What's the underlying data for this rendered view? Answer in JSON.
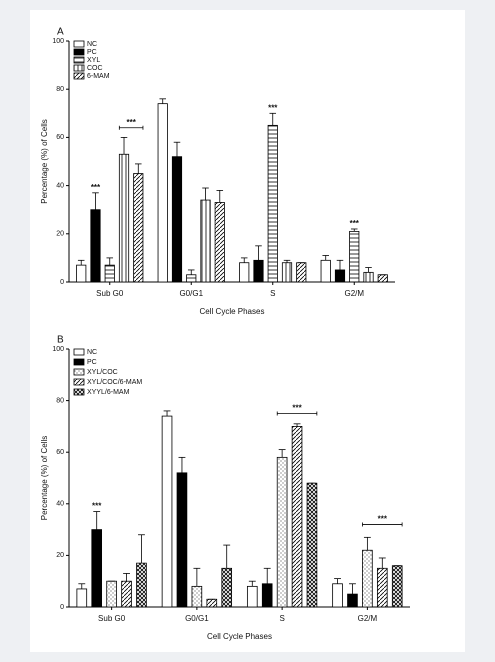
{
  "chart_data": [
    {
      "type": "bar",
      "title": "A",
      "x_label": "Cell Cycle Phases",
      "y_label": "Percentage (%) of Cells",
      "categories": [
        "Sub G0",
        "G0/G1",
        "S",
        "G2/M"
      ],
      "ylim": [
        0,
        100
      ],
      "yticks": [
        0,
        20,
        40,
        60,
        80,
        100
      ],
      "legend": "upper left",
      "series": [
        {
          "name": "NC",
          "color": "#ffffff",
          "hatch": "none",
          "values": [
            7,
            74,
            8,
            9
          ],
          "errors": [
            2,
            2,
            2,
            2
          ],
          "significance": [
            null,
            null,
            null,
            null
          ]
        },
        {
          "name": "PC",
          "color": "#000000",
          "hatch": "solid",
          "values": [
            30,
            52,
            9,
            5
          ],
          "errors": [
            7,
            6,
            6,
            4
          ],
          "significance": [
            "***",
            null,
            null,
            null
          ]
        },
        {
          "name": "XYL",
          "color": "#000000",
          "hatch": "horizontal",
          "values": [
            7,
            3,
            65,
            21
          ],
          "errors": [
            3,
            2,
            5,
            1
          ],
          "significance": [
            null,
            null,
            "***",
            "***"
          ]
        },
        {
          "name": "COC",
          "color": "#000000",
          "hatch": "vertical",
          "values": [
            53,
            34,
            8,
            4
          ],
          "errors": [
            7,
            5,
            1,
            2
          ],
          "significance": [
            null,
            null,
            null,
            null
          ]
        },
        {
          "name": "6-MAM",
          "color": "#000000",
          "hatch": "diagonal",
          "values": [
            45,
            33,
            8,
            3
          ],
          "errors": [
            4,
            5,
            0,
            0
          ],
          "significance": [
            null,
            null,
            null,
            null
          ]
        }
      ],
      "brackets": [
        {
          "label": "***",
          "category": "Sub G0",
          "from": "COC",
          "to": "6-MAM",
          "y": 64
        }
      ]
    },
    {
      "type": "bar",
      "title": "B",
      "x_label": "Cell Cycle Phases",
      "y_label": "Percentage (%) of Cells",
      "categories": [
        "Sub G0",
        "G0/G1",
        "S",
        "G2/M"
      ],
      "ylim": [
        0,
        100
      ],
      "yticks": [
        0,
        20,
        40,
        60,
        80,
        100
      ],
      "legend": "upper left",
      "series": [
        {
          "name": "NC",
          "color": "#ffffff",
          "hatch": "none",
          "values": [
            7,
            74,
            8,
            9
          ],
          "errors": [
            2,
            2,
            2,
            2
          ],
          "significance": [
            null,
            null,
            null,
            null
          ]
        },
        {
          "name": "PC",
          "color": "#000000",
          "hatch": "solid",
          "values": [
            30,
            52,
            9,
            5
          ],
          "errors": [
            7,
            6,
            6,
            4
          ],
          "significance": [
            "***",
            null,
            null,
            null
          ]
        },
        {
          "name": "XYL/COC",
          "color": "#555555",
          "hatch": "dots",
          "values": [
            10,
            8,
            58,
            22
          ],
          "errors": [
            0,
            7,
            3,
            5
          ],
          "significance": [
            null,
            null,
            null,
            null
          ]
        },
        {
          "name": "XYL/COC/6-MAM",
          "color": "#000000",
          "hatch": "diagonal",
          "values": [
            10,
            3,
            70,
            15
          ],
          "errors": [
            3,
            0,
            1,
            4
          ],
          "significance": [
            null,
            null,
            null,
            null
          ]
        },
        {
          "name": "XYYL/6-MAM",
          "color": "#000000",
          "hatch": "cross",
          "values": [
            17,
            15,
            48,
            16
          ],
          "errors": [
            11,
            9,
            0,
            0
          ],
          "significance": [
            null,
            null,
            null,
            null
          ]
        }
      ],
      "brackets": [
        {
          "label": "***",
          "category": "S",
          "from": "XYL/COC",
          "to": "XYYL/6-MAM",
          "y": 75
        },
        {
          "label": "***",
          "category": "G2/M",
          "from": "XYL/COC",
          "to": "XYYL/6-MAM",
          "y": 32
        }
      ]
    }
  ]
}
